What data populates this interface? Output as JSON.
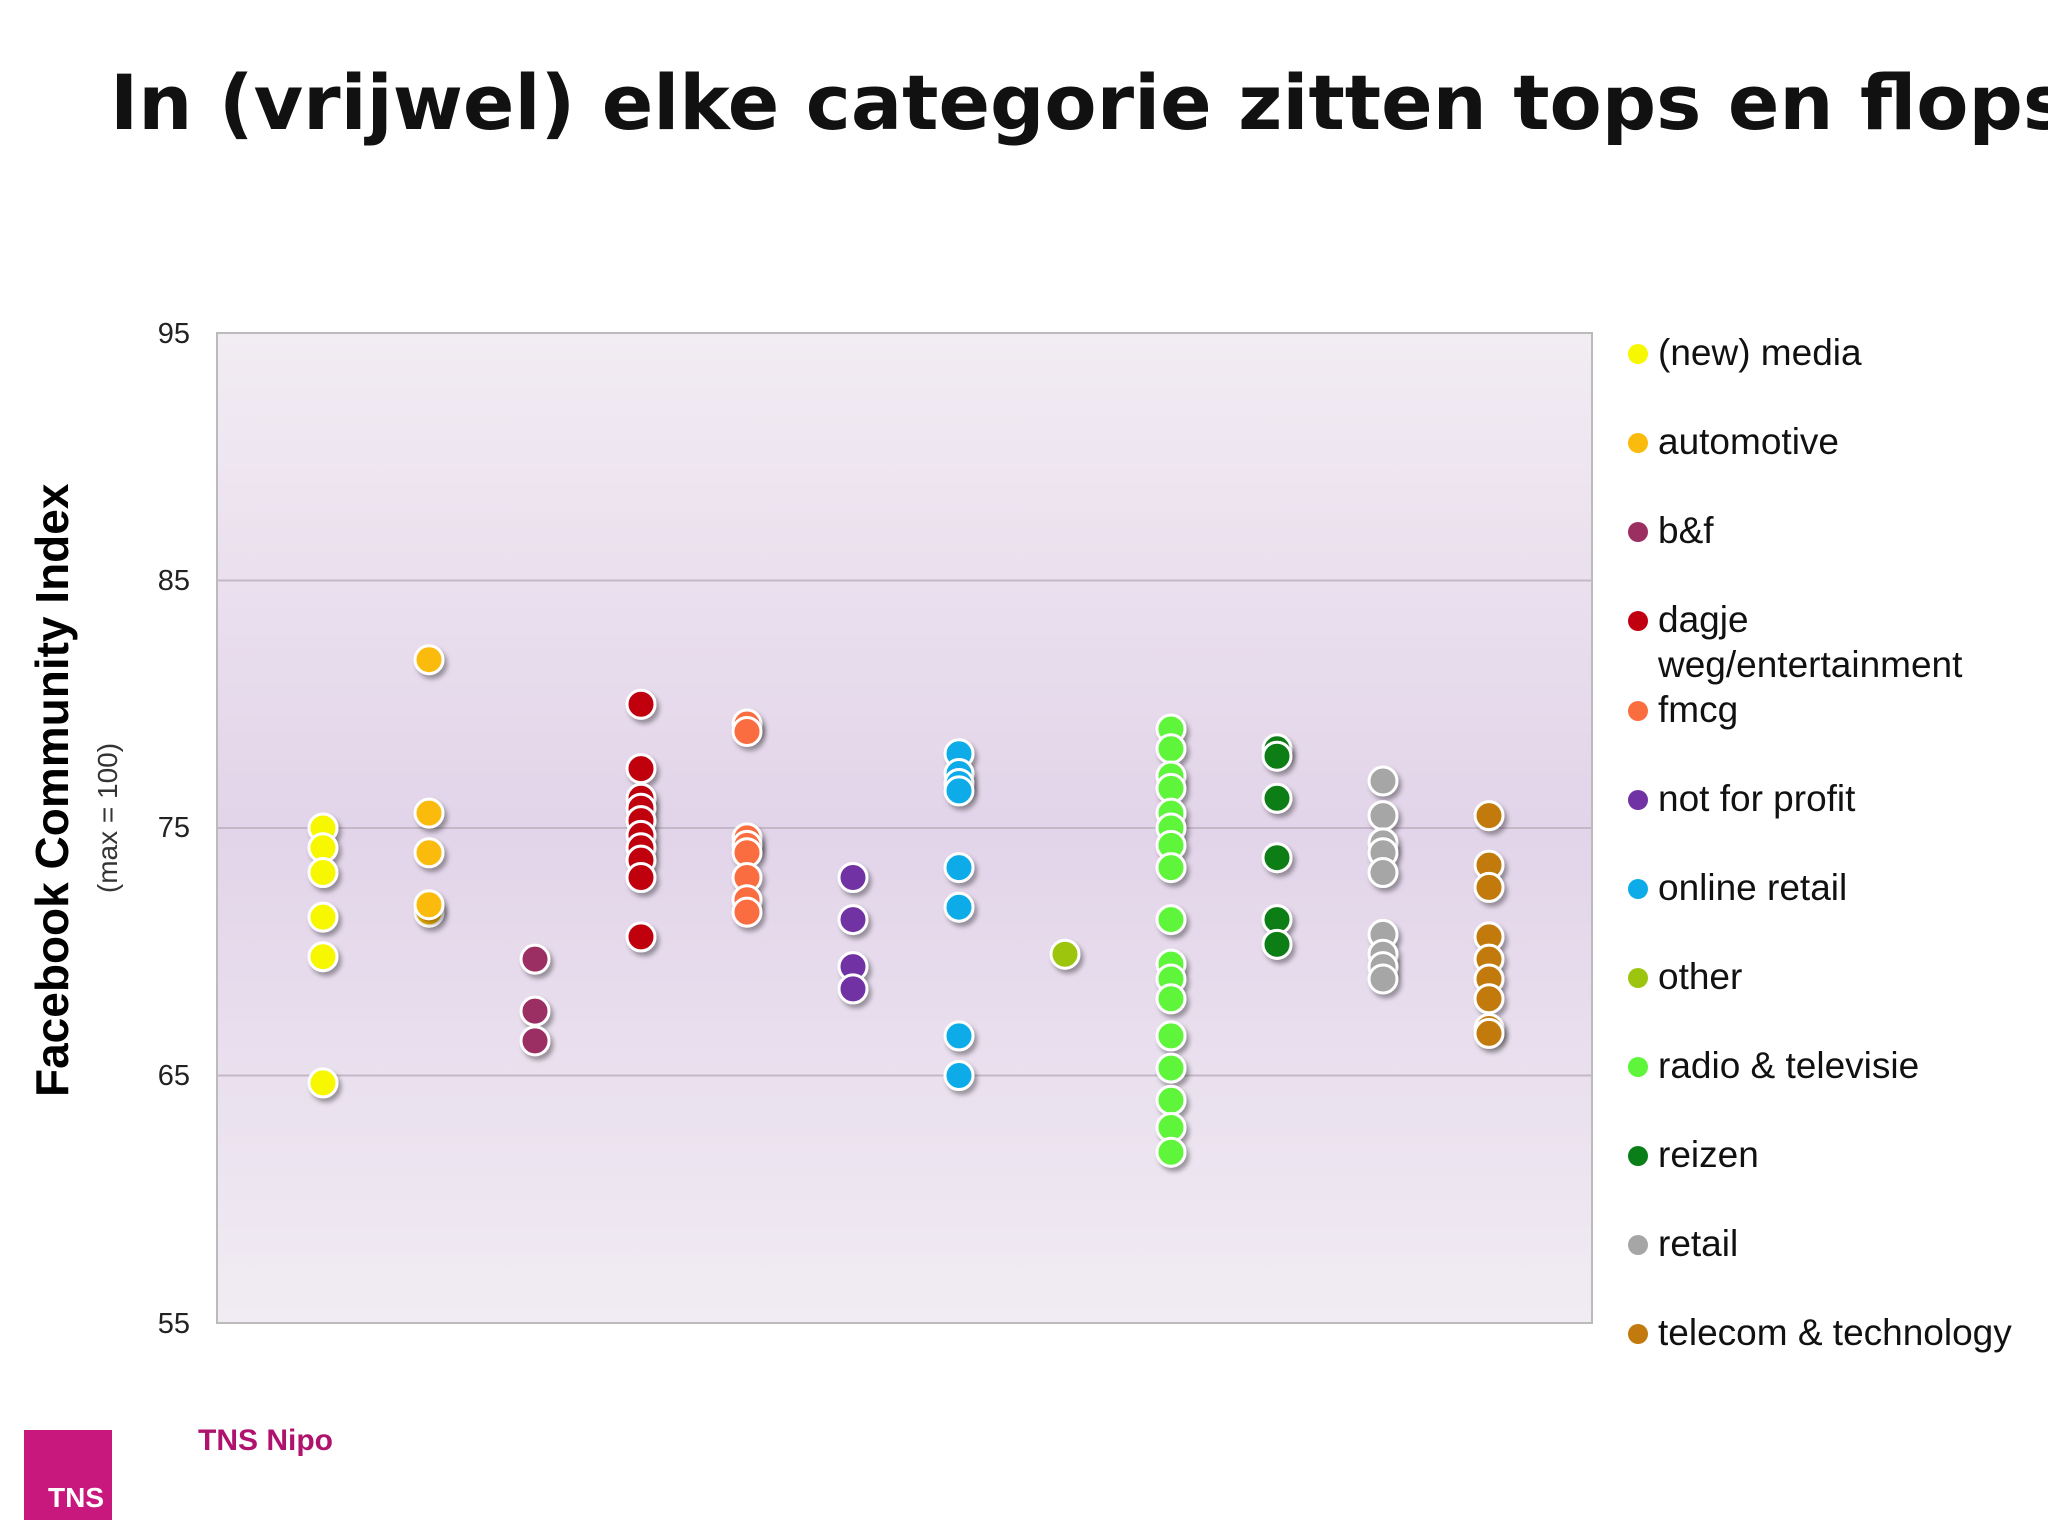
{
  "title": "In (vrijwel) elke categorie zitten tops en flops",
  "chart_data": {
    "type": "scatter",
    "ylabel": "Facebook Community Index",
    "ylabel_sub": "(max = 100)",
    "ylim": [
      55,
      95
    ],
    "yticks": [
      "95",
      "85",
      "75",
      "65",
      "55"
    ],
    "grid": true,
    "legend_placement": "right",
    "series": [
      {
        "name": "(new) media",
        "color": "#f7f700",
        "values": [
          75,
          74.2,
          73.2,
          71.4,
          69.8,
          64.7
        ]
      },
      {
        "name": "automotive",
        "color": "#fbbb0d",
        "values": [
          81.8,
          75.6,
          74,
          71.6,
          71.9
        ]
      },
      {
        "name": "b&f",
        "color": "#9b2f62",
        "values": [
          69.7,
          67.6,
          66.4
        ]
      },
      {
        "name": "dagje weg/entertainment",
        "color": "#c00010",
        "values": [
          80,
          77.4,
          76.2,
          75.8,
          75.3,
          74.7,
          74.2,
          73.7,
          73,
          70.6
        ]
      },
      {
        "name": "fmcg",
        "color": "#fa6d3f",
        "values": [
          79.2,
          78.9,
          74.6,
          74.3,
          74,
          73,
          72.1,
          71.6
        ]
      },
      {
        "name": "not for profit",
        "color": "#7132a4",
        "values": [
          73,
          71.3,
          69.4,
          68.5
        ]
      },
      {
        "name": "online retail",
        "color": "#0dace9",
        "values": [
          78,
          77.2,
          76.8,
          76.5,
          73.4,
          71.8,
          66.6,
          65
        ]
      },
      {
        "name": "other",
        "color": "#9dc50f",
        "values": [
          69.9
        ]
      },
      {
        "name": "radio & televisie",
        "color": "#5ff53b",
        "values": [
          79,
          78.2,
          77.1,
          76.6,
          75.6,
          75,
          74.3,
          73.4,
          71.3,
          69.5,
          68.9,
          68.1,
          66.6,
          65.3,
          64,
          62.9,
          61.9
        ]
      },
      {
        "name": "reizen",
        "color": "#0a7e18",
        "values": [
          78.2,
          77.9,
          76.2,
          73.8,
          71.3,
          70.3
        ]
      },
      {
        "name": "retail",
        "color": "#a6a6a6",
        "values": [
          76.9,
          75.5,
          74.4,
          74,
          73.2,
          70.7,
          69.9,
          69.4,
          68.9
        ]
      },
      {
        "name": "telecom & technology",
        "color": "#c27a0f",
        "values": [
          75.5,
          73.5,
          72.6,
          70.6,
          69.7,
          68.9,
          68.1,
          66.9,
          66.7
        ]
      }
    ]
  },
  "legend": [
    {
      "label": "(new) media",
      "color": "#f7f700"
    },
    {
      "label": "automotive",
      "color": "#fbbb0d"
    },
    {
      "label": "b&f",
      "color": "#9b2f62"
    },
    {
      "label": "dagje",
      "label2": "weg/entertainment",
      "color": "#c00010"
    },
    {
      "label": "fmcg",
      "color": "#fa6d3f"
    },
    {
      "label": "not for profit",
      "color": "#7132a4"
    },
    {
      "label": "online retail",
      "color": "#0dace9"
    },
    {
      "label": "other",
      "color": "#9dc50f"
    },
    {
      "label": "radio & televisie",
      "color": "#5ff53b"
    },
    {
      "label": "reizen",
      "color": "#0a7e18"
    },
    {
      "label": "retail",
      "color": "#a6a6a6"
    },
    {
      "label": "telecom & technology",
      "color": "#c27a0f"
    }
  ],
  "logo": {
    "mark": "TNS",
    "text": "TNS Nipo",
    "color": "#c8187d"
  }
}
